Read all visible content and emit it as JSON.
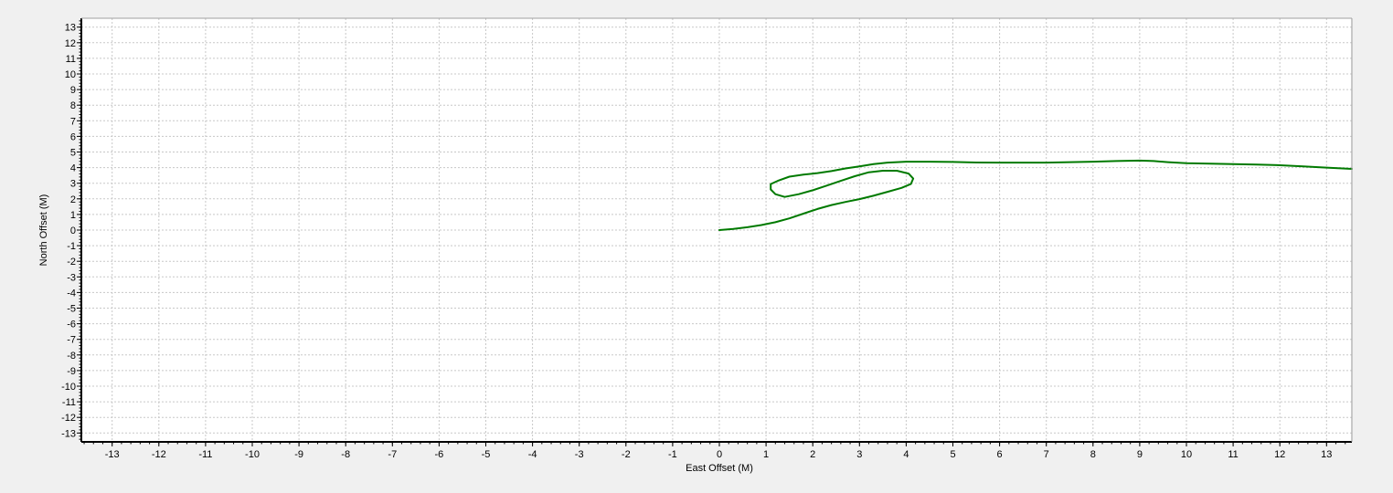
{
  "chart_data": {
    "type": "line",
    "xlabel": "East Offset (M)",
    "ylabel": "North Offset (M)",
    "xlim": [
      -13.6,
      13.6
    ],
    "ylim": [
      -13.6,
      13.6
    ],
    "xticks": [
      -13,
      -12,
      -11,
      -10,
      -9,
      -8,
      -7,
      -6,
      -5,
      -4,
      -3,
      -2,
      -1,
      0,
      1,
      2,
      3,
      4,
      5,
      6,
      7,
      8,
      9,
      10,
      11,
      12,
      13
    ],
    "yticks": [
      -13,
      -12,
      -11,
      -10,
      -9,
      -8,
      -7,
      -6,
      -5,
      -4,
      -3,
      -2,
      -1,
      0,
      1,
      2,
      3,
      4,
      5,
      6,
      7,
      8,
      9,
      10,
      11,
      12,
      13
    ],
    "grid": true,
    "legend": "none",
    "series": [
      {
        "color": "#007a00",
        "x": [
          0,
          0.3,
          0.6,
          0.9,
          1.2,
          1.5,
          1.8,
          2.1,
          2.4,
          2.7,
          3.0,
          3.3,
          3.6,
          3.9,
          4.1,
          4.15,
          4.05,
          3.8,
          3.5,
          3.2,
          2.9,
          2.6,
          2.3,
          2.0,
          1.7,
          1.4,
          1.2,
          1.1,
          1.1,
          1.25,
          1.5,
          1.8,
          2.1,
          2.4,
          2.7,
          3.0,
          3.3,
          3.6,
          4.0,
          4.5,
          5.0,
          5.5,
          6.0,
          6.5,
          7.0,
          7.5,
          8.0,
          8.5,
          9.0,
          9.3,
          9.6,
          10.0,
          10.5,
          11.0,
          11.5,
          12.0,
          12.5,
          13.0,
          13.6
        ],
        "y": [
          0,
          0.07,
          0.18,
          0.32,
          0.5,
          0.75,
          1.05,
          1.35,
          1.6,
          1.8,
          1.98,
          2.2,
          2.45,
          2.7,
          2.95,
          3.3,
          3.62,
          3.8,
          3.8,
          3.7,
          3.45,
          3.15,
          2.85,
          2.55,
          2.3,
          2.12,
          2.3,
          2.6,
          2.95,
          3.15,
          3.42,
          3.55,
          3.65,
          3.78,
          3.95,
          4.08,
          4.22,
          4.32,
          4.38,
          4.38,
          4.36,
          4.33,
          4.32,
          4.32,
          4.32,
          4.35,
          4.38,
          4.42,
          4.45,
          4.42,
          4.35,
          4.28,
          4.25,
          4.22,
          4.2,
          4.15,
          4.08,
          4.0,
          3.92
        ]
      }
    ]
  }
}
